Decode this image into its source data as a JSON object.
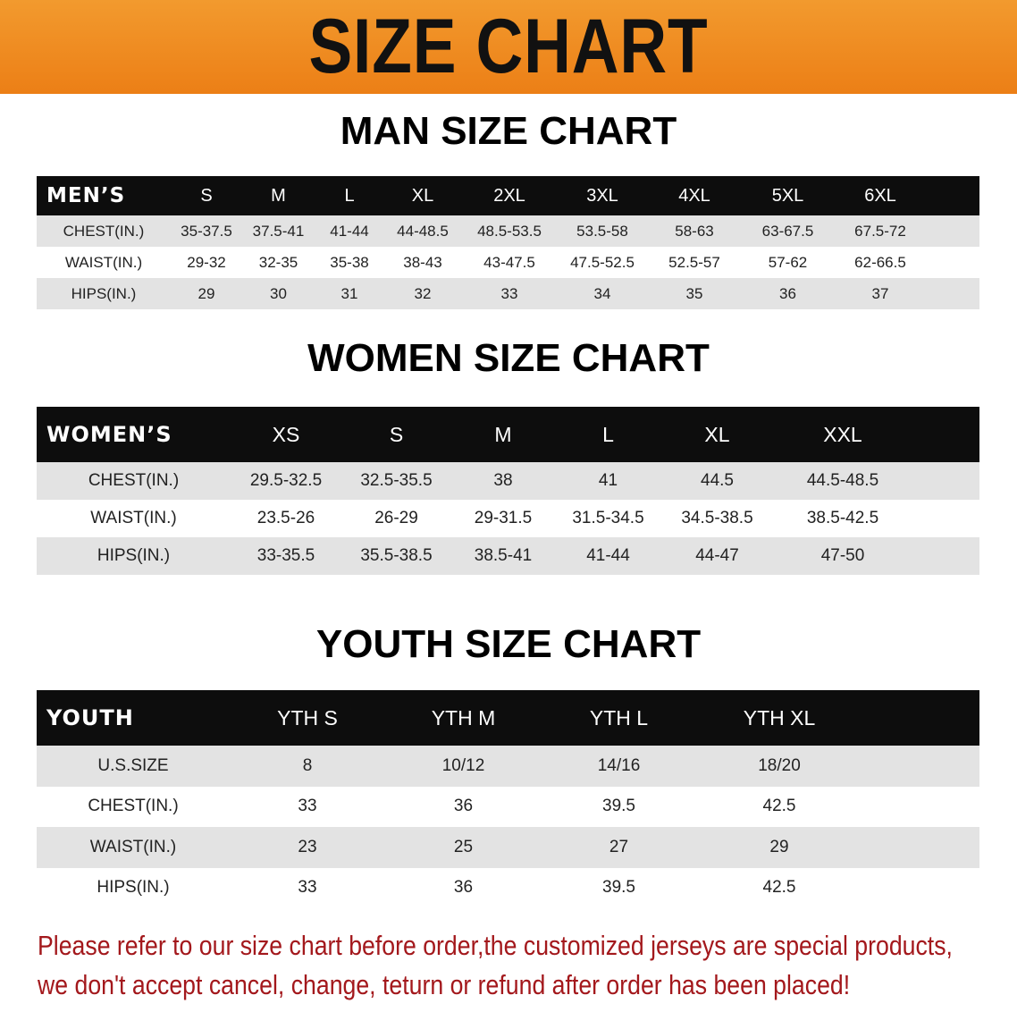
{
  "banner_title": "SIZE CHART",
  "colors": {
    "banner": "#ec8418",
    "table_header": "#0d0d0d",
    "stripe": "#e3e3e3",
    "note": "#a3181c"
  },
  "men": {
    "title": "MAN SIZE CHART",
    "header": [
      "MEN’S",
      "S",
      "M",
      "L",
      "XL",
      "2XL",
      "3XL",
      "4XL",
      "5XL",
      "6XL"
    ],
    "rows": [
      [
        "CHEST(IN.)",
        "35-37.5",
        "37.5-41",
        "41-44",
        "44-48.5",
        "48.5-53.5",
        "53.5-58",
        "58-63",
        "63-67.5",
        "67.5-72"
      ],
      [
        "WAIST(IN.)",
        "29-32",
        "32-35",
        "35-38",
        "38-43",
        "43-47.5",
        "47.5-52.5",
        "52.5-57",
        "57-62",
        "62-66.5"
      ],
      [
        "HIPS(IN.)",
        "29",
        "30",
        "31",
        "32",
        "33",
        "34",
        "35",
        "36",
        "37"
      ]
    ]
  },
  "women": {
    "title": "WOMEN SIZE CHART",
    "header": [
      "WOMEN’S",
      "XS",
      "S",
      "M",
      "L",
      "XL",
      "XXL"
    ],
    "rows": [
      [
        "CHEST(IN.)",
        "29.5-32.5",
        "32.5-35.5",
        "38",
        "41",
        "44.5",
        "44.5-48.5"
      ],
      [
        "WAIST(IN.)",
        "23.5-26",
        "26-29",
        "29-31.5",
        "31.5-34.5",
        "34.5-38.5",
        "38.5-42.5"
      ],
      [
        "HIPS(IN.)",
        "33-35.5",
        "35.5-38.5",
        "38.5-41",
        "41-44",
        "44-47",
        "47-50"
      ]
    ]
  },
  "youth": {
    "title": "YOUTH SIZE CHART",
    "header": [
      "YOUTH",
      "YTH S",
      "YTH M",
      "YTH L",
      "YTH XL"
    ],
    "rows": [
      [
        "U.S.SIZE",
        "8",
        "10/12",
        "14/16",
        "18/20"
      ],
      [
        "CHEST(IN.)",
        "33",
        "36",
        "39.5",
        "42.5"
      ],
      [
        "WAIST(IN.)",
        "23",
        "25",
        "27",
        "29"
      ],
      [
        "HIPS(IN.)",
        "33",
        "36",
        "39.5",
        "42.5"
      ]
    ]
  },
  "note": {
    "line1": "Please refer to our size chart before order,the customized jerseys are special products,",
    "line2": "we don't accept cancel, change, teturn or refund after order has been placed!"
  }
}
